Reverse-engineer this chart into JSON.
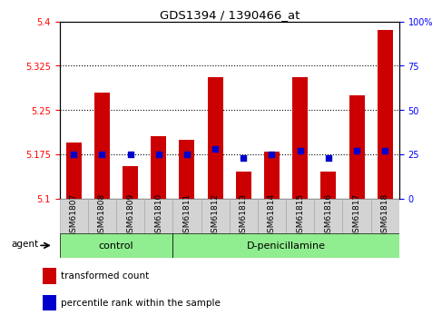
{
  "title": "GDS1394 / 1390466_at",
  "samples": [
    "GSM61807",
    "GSM61808",
    "GSM61809",
    "GSM61810",
    "GSM61811",
    "GSM61812",
    "GSM61813",
    "GSM61814",
    "GSM61815",
    "GSM61816",
    "GSM61817",
    "GSM61818"
  ],
  "bar_values": [
    5.195,
    5.28,
    5.155,
    5.205,
    5.2,
    5.305,
    5.145,
    5.18,
    5.305,
    5.145,
    5.275,
    5.385
  ],
  "blue_dot_values": [
    25,
    25,
    25,
    25,
    25,
    28,
    23,
    25,
    27,
    23,
    27,
    27
  ],
  "bar_color": "#cc0000",
  "dot_color": "#0000cc",
  "ylim_left": [
    5.1,
    5.4
  ],
  "ylim_right": [
    0,
    100
  ],
  "yticks_left": [
    5.1,
    5.175,
    5.25,
    5.325,
    5.4
  ],
  "yticks_right": [
    0,
    25,
    50,
    75,
    100
  ],
  "ytick_labels_left": [
    "5.1",
    "5.175",
    "5.25",
    "5.325",
    "5.4"
  ],
  "ytick_labels_right": [
    "0",
    "25",
    "50",
    "75",
    "100%"
  ],
  "hlines": [
    5.175,
    5.25,
    5.325
  ],
  "control_label": "control",
  "treatment_label": "D-penicillamine",
  "agent_label": "agent",
  "legend_bar_label": "transformed count",
  "legend_dot_label": "percentile rank within the sample",
  "control_color": "#90ee90",
  "treatment_color": "#90ee90",
  "xtick_bg_color": "#d3d3d3",
  "xtick_border_color": "#aaaaaa"
}
